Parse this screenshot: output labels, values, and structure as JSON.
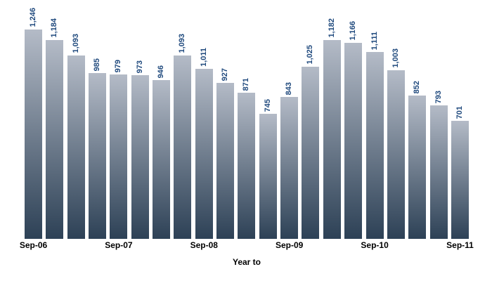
{
  "chart_data": {
    "type": "bar",
    "values": [
      1246,
      1184,
      1093,
      985,
      979,
      973,
      946,
      1093,
      1011,
      927,
      871,
      745,
      843,
      1025,
      1182,
      1166,
      1111,
      1003,
      852,
      793,
      701
    ],
    "value_labels": [
      "1,246",
      "1,184",
      "1,093",
      "985",
      "979",
      "973",
      "946",
      "1,093",
      "1,011",
      "927",
      "871",
      "745",
      "843",
      "1,025",
      "1,182",
      "1,166",
      "1,111",
      "1,003",
      "852",
      "793",
      "701"
    ],
    "x_tick_labels": [
      "Sep-06",
      "Sep-07",
      "Sep-08",
      "Sep-09",
      "Sep-10",
      "Sep-11"
    ],
    "x_tick_bar_indices": [
      0,
      4,
      8,
      12,
      16,
      20
    ],
    "title": "",
    "xlabel": "Year to",
    "ylabel": "",
    "ylim": [
      0,
      1400
    ],
    "grid": "off",
    "legend": "none",
    "bar_gradient_top": "#b4bbc7",
    "bar_gradient_bottom": "#2d4156",
    "value_label_color": "#1F497D",
    "axis_label_color": "#000000"
  }
}
